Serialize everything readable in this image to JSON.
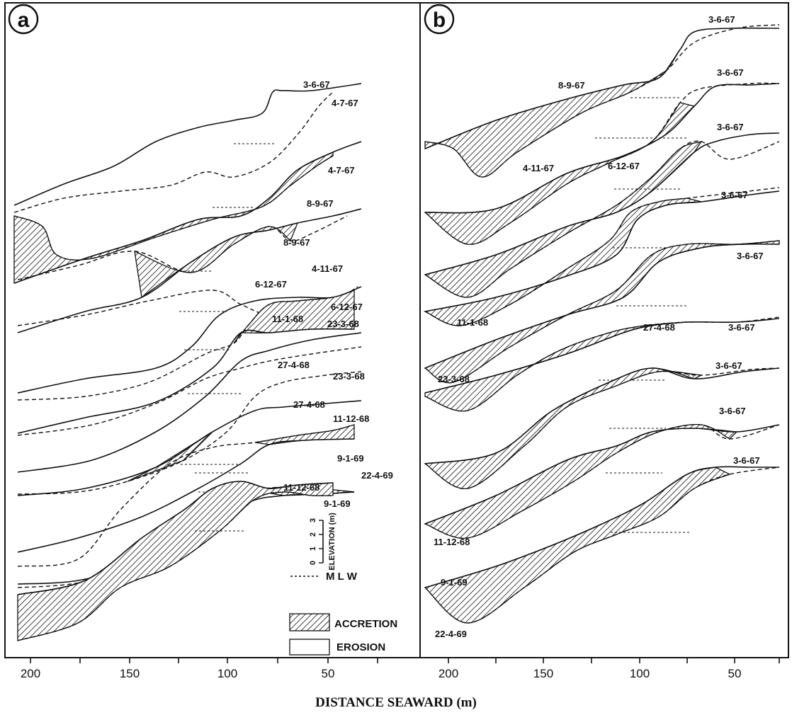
{
  "chart_data": [
    {
      "type": "line",
      "panel": "a",
      "xlabel": "DISTANCE SEAWARD (m)",
      "xlim": [
        215,
        25
      ],
      "x_ticks": [
        "200",
        "150",
        "100",
        "50"
      ],
      "profiles": [
        {
          "solid": "3-6-67",
          "dashed": "4-7-67",
          "accretion": false
        },
        {
          "solid": "4-7-67",
          "dashed": "8-9-67",
          "accretion": true
        },
        {
          "solid": "8-9-67",
          "dashed": "4-11-67",
          "accretion": true
        },
        {
          "solid": "4-11-67",
          "dashed": "6-12-67",
          "accretion": false
        },
        {
          "solid": "6-12-67",
          "dashed": "11-1-68",
          "accretion": true
        },
        {
          "solid": "11-1-68",
          "dashed": "23-3-68",
          "accretion": false
        },
        {
          "solid": "23-3-68",
          "dashed": "27-4-68",
          "accretion": false
        },
        {
          "solid": "27-4-68",
          "dashed": "11-12-68",
          "accretion": true
        },
        {
          "solid": "11-12-68",
          "dashed": "9-1-69",
          "accretion": true
        },
        {
          "solid": "9-1-69",
          "dashed": "22-4-69",
          "accretion": true
        }
      ],
      "labels": [
        "3-6-67",
        "4-7-67",
        "4-7-67",
        "8-9-67",
        "8-9-67",
        "4-11-67",
        "6-12-67",
        "6-12-67",
        "11-1-68",
        "23-3-68",
        "27-4-68",
        "23-3-68",
        "27-4-68",
        "11-12-68",
        "9-1-69",
        "11-12-68",
        "22-4-69",
        "9-1-69"
      ]
    },
    {
      "type": "line",
      "panel": "b",
      "xlabel": "DISTANCE SEAWARD (m)",
      "xlim": [
        215,
        25
      ],
      "x_ticks": [
        "200",
        "150",
        "100",
        "50"
      ],
      "profiles": [
        {
          "solid": "3-6-67",
          "dashed": "8-9-67",
          "accretion": true
        },
        {
          "solid": "3-6-67",
          "dashed": "4-11-67",
          "accretion": true
        },
        {
          "solid": "3-6-67",
          "dashed": "6-12-67",
          "accretion": true
        },
        {
          "solid": "3-6-67",
          "dashed": "11-1-68",
          "accretion": true
        },
        {
          "solid": "3-6-67",
          "dashed": "23-3-68",
          "accretion": true
        },
        {
          "solid": "3-6-67",
          "dashed": "27-4-68",
          "accretion": true
        },
        {
          "solid": "3-6-67",
          "dashed": "11-12-68",
          "accretion": true
        },
        {
          "solid": "3-6-67",
          "dashed": "9-1-69",
          "accretion": true
        },
        {
          "solid": "3-6-67",
          "dashed": "22-4-69",
          "accretion": true
        }
      ],
      "labels": [
        "3-6-67",
        "8-9-67",
        "3-6-67",
        "3-6-67",
        "4-11-67",
        "6-12-67",
        "3-6-67",
        "3-6-67",
        "11-1-68",
        "27-4-68",
        "3-6-67",
        "23-3-68",
        "3-6-67",
        "3-6-67",
        "3-6-67",
        "11-12-68",
        "9-1-69",
        "22-4-69"
      ]
    }
  ],
  "panels": {
    "a": {
      "letter": "a"
    },
    "b": {
      "letter": "b"
    }
  },
  "legend": {
    "mlw": "M L W",
    "accretion": "ACCRETION",
    "erosion": "EROSION",
    "scale_title": "ELEVATION (m)",
    "scale_ticks": [
      "0",
      "1",
      "2",
      "3"
    ]
  },
  "xlabel": "DISTANCE SEAWARD (m)",
  "x_ticks": [
    "200",
    "150",
    "100",
    "50"
  ]
}
